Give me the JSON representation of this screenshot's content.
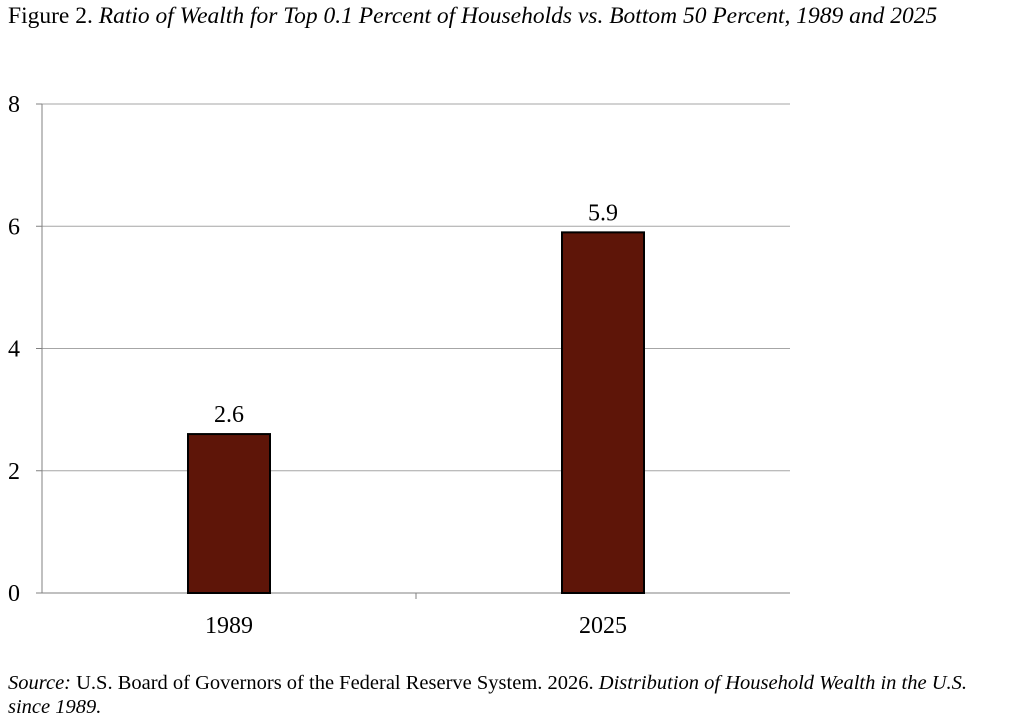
{
  "figure": {
    "label": "Figure 2.",
    "title": "Ratio of Wealth for Top 0.1 Percent of Households vs. Bottom 50 Percent, 1989 and 2025"
  },
  "source": {
    "label": "Source:",
    "text": "U.S. Board of Governors of the Federal Reserve System. 2026.",
    "publication": "Distribution of Household Wealth in the U.S. since 1989."
  },
  "chart_data": {
    "type": "bar",
    "title": "Ratio of Wealth for Top 0.1 Percent of Households vs. Bottom 50 Percent, 1989 and 2025",
    "categories": [
      "1989",
      "2025"
    ],
    "values": [
      2.6,
      5.9
    ],
    "data_labels": [
      "2.6",
      "5.9"
    ],
    "ylim": [
      0,
      8
    ],
    "yticks": [
      0,
      2,
      4,
      6,
      8
    ],
    "ytick_labels": [
      "0",
      "2",
      "4",
      "6",
      "8"
    ],
    "xlabel": "",
    "ylabel": "",
    "grid": true,
    "legend": "none",
    "bar_color": "#5e1508"
  }
}
